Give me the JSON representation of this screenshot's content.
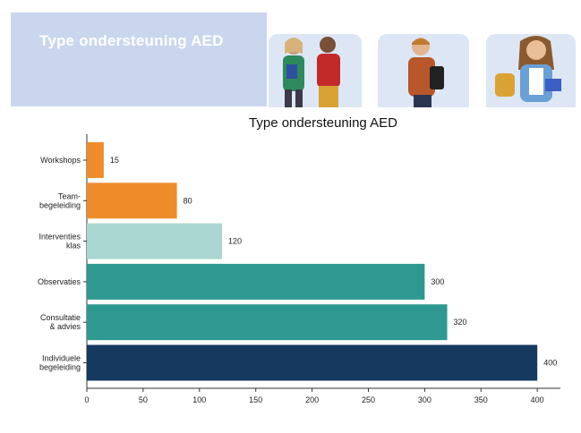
{
  "banner": {
    "title": "Type ondersteuning AED"
  },
  "chart_data": {
    "type": "bar",
    "orientation": "horizontal",
    "title": "Type ondersteuning AED",
    "xlabel": "",
    "ylabel": "",
    "xlim": [
      0,
      420
    ],
    "x_ticks": [
      0,
      50,
      100,
      150,
      200,
      250,
      300,
      350,
      400
    ],
    "grid": false,
    "categories": [
      [
        "Workshops"
      ],
      [
        "Team-",
        "begeleiding"
      ],
      [
        "Interventies",
        "klas"
      ],
      [
        "Observaties"
      ],
      [
        "Consultatie",
        "& advies"
      ],
      [
        "Individuele",
        "begeleiding"
      ]
    ],
    "values": [
      15,
      80,
      120,
      300,
      320,
      400
    ],
    "data_labels": [
      "15",
      "80",
      "120",
      "300",
      "320",
      "400"
    ],
    "colors": [
      "#ef8c2a",
      "#ef8c2a",
      "#a9d6d1",
      "#2e9990",
      "#2e9990",
      "#163a5f"
    ]
  }
}
